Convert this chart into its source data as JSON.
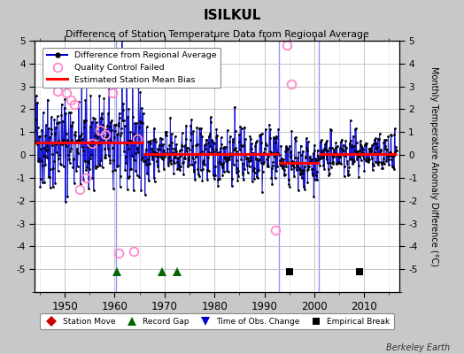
{
  "title": "ISILKUL",
  "subtitle": "Difference of Station Temperature Data from Regional Average",
  "ylabel_right": "Monthly Temperature Anomaly Difference (°C)",
  "credit": "Berkeley Earth",
  "xlim": [
    1944,
    2017
  ],
  "ylim": [
    -6,
    5
  ],
  "yticks": [
    -5,
    -4,
    -3,
    -2,
    -1,
    0,
    1,
    2,
    3,
    4,
    5
  ],
  "xticks": [
    1950,
    1960,
    1970,
    1980,
    1990,
    2000,
    2010
  ],
  "bg_color": "#c8c8c8",
  "plot_bg_color": "#ffffff",
  "line_color": "#0000cc",
  "dot_color": "#000000",
  "bias_color": "#ff0000",
  "qc_color": "#ff88cc",
  "gap_marker_color": "#006600",
  "break_color": "#000000",
  "station_move_color": "#cc0000",
  "time_change_color": "#0000cc",
  "segment_biases": [
    {
      "x_start": 1944.0,
      "x_end": 1960.3,
      "bias": 0.55
    },
    {
      "x_start": 1960.3,
      "x_end": 1965.8,
      "bias": 0.55
    },
    {
      "x_start": 1965.8,
      "x_end": 1993.0,
      "bias": 0.05
    },
    {
      "x_start": 1993.0,
      "x_end": 2001.0,
      "bias": -0.35
    },
    {
      "x_start": 2001.0,
      "x_end": 2016.5,
      "bias": 0.05
    }
  ],
  "vertical_lines": [
    1960.3,
    1993.0,
    2001.0
  ],
  "record_gaps": [
    1960.5,
    1969.5,
    1972.5
  ],
  "empirical_breaks": [
    1995.0,
    2009.0
  ],
  "qc_failed_points": [
    [
      1948.5,
      2.8
    ],
    [
      1950.3,
      2.7
    ],
    [
      1951.2,
      2.4
    ],
    [
      1952.0,
      2.2
    ],
    [
      1953.0,
      -1.5
    ],
    [
      1954.3,
      -1.0
    ],
    [
      1955.5,
      0.5
    ],
    [
      1957.0,
      1.1
    ],
    [
      1958.2,
      0.9
    ],
    [
      1959.5,
      2.7
    ],
    [
      1960.8,
      -4.3
    ],
    [
      1963.8,
      -4.2
    ],
    [
      1964.5,
      0.7
    ],
    [
      1992.3,
      -3.3
    ],
    [
      1994.5,
      4.8
    ],
    [
      1995.5,
      3.1
    ]
  ],
  "segments": [
    [
      1944.0,
      1960.2,
      196,
      0.55,
      1.3
    ],
    [
      1960.4,
      1965.8,
      65,
      0.55,
      1.4
    ],
    [
      1966.0,
      1992.9,
      324,
      0.05,
      0.72
    ],
    [
      1993.1,
      2000.9,
      96,
      -0.35,
      0.58
    ],
    [
      2001.1,
      2016.5,
      187,
      0.05,
      0.52
    ]
  ]
}
